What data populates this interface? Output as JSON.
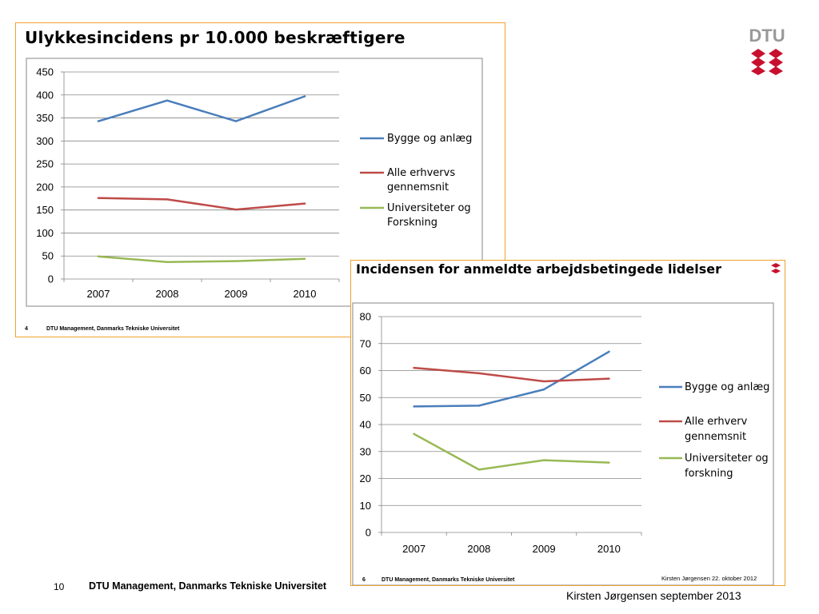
{
  "slide": {
    "number": "10",
    "org": "DTU Management, Danmarks Tekniske Universitet",
    "author_date": "Kirsten Jørgensen september 2013",
    "logo_text": "DTU"
  },
  "colors": {
    "blue": "#4a7ebb",
    "red": "#be4b48",
    "green": "#98b954",
    "panel_border": "#f0a030"
  },
  "panel1": {
    "title": "Ulykkesincidens pr 10.000 beskræftigere",
    "footer_num": "4",
    "footer_org": "DTU Management, Danmarks Tekniske Universitet"
  },
  "panel2": {
    "title": "Incidensen for anmeldte arbejdsbetingede lidelser",
    "footer_num": "6",
    "footer_org": "DTU Management, Danmarks Tekniske Universitet",
    "footer_author": "Kirsten Jørgensen 22. oktober 2012"
  },
  "chart_data": [
    {
      "type": "line",
      "title": "Ulykkesincidens pr 10.000 beskræftigere",
      "categories": [
        "2007",
        "2008",
        "2009",
        "2010"
      ],
      "ylim": [
        0,
        450
      ],
      "yticks": [
        0,
        50,
        100,
        150,
        200,
        250,
        300,
        350,
        400,
        450
      ],
      "grid": true,
      "legend_position": "right",
      "series": [
        {
          "name": "Bygge og anlæg",
          "color": "#4a7ebb",
          "values": [
            343,
            388,
            343,
            397
          ]
        },
        {
          "name": "Alle erhvervs gennemsnit",
          "color": "#be4b48",
          "values": [
            176,
            173,
            151,
            164
          ]
        },
        {
          "name": "Universiteter og Forskning",
          "color": "#98b954",
          "values": [
            49,
            37,
            39,
            44
          ]
        }
      ]
    },
    {
      "type": "line",
      "title": "Incidensen for anmeldte arbejdsbetingede lidelser",
      "categories": [
        "2007",
        "2008",
        "2009",
        "2010"
      ],
      "ylim": [
        0,
        80
      ],
      "yticks": [
        0,
        10,
        20,
        30,
        40,
        50,
        60,
        70,
        80
      ],
      "grid": true,
      "legend_position": "right",
      "series": [
        {
          "name": "Bygge og anlæg",
          "color": "#4a7ebb",
          "values": [
            46.7,
            47,
            53,
            67
          ]
        },
        {
          "name": "Alle erhverv gennemsnit",
          "color": "#be4b48",
          "values": [
            61,
            59,
            56,
            57
          ]
        },
        {
          "name": "Universiteter og forskning",
          "color": "#98b954",
          "values": [
            36.5,
            23.3,
            26.8,
            25.9
          ]
        }
      ]
    }
  ]
}
